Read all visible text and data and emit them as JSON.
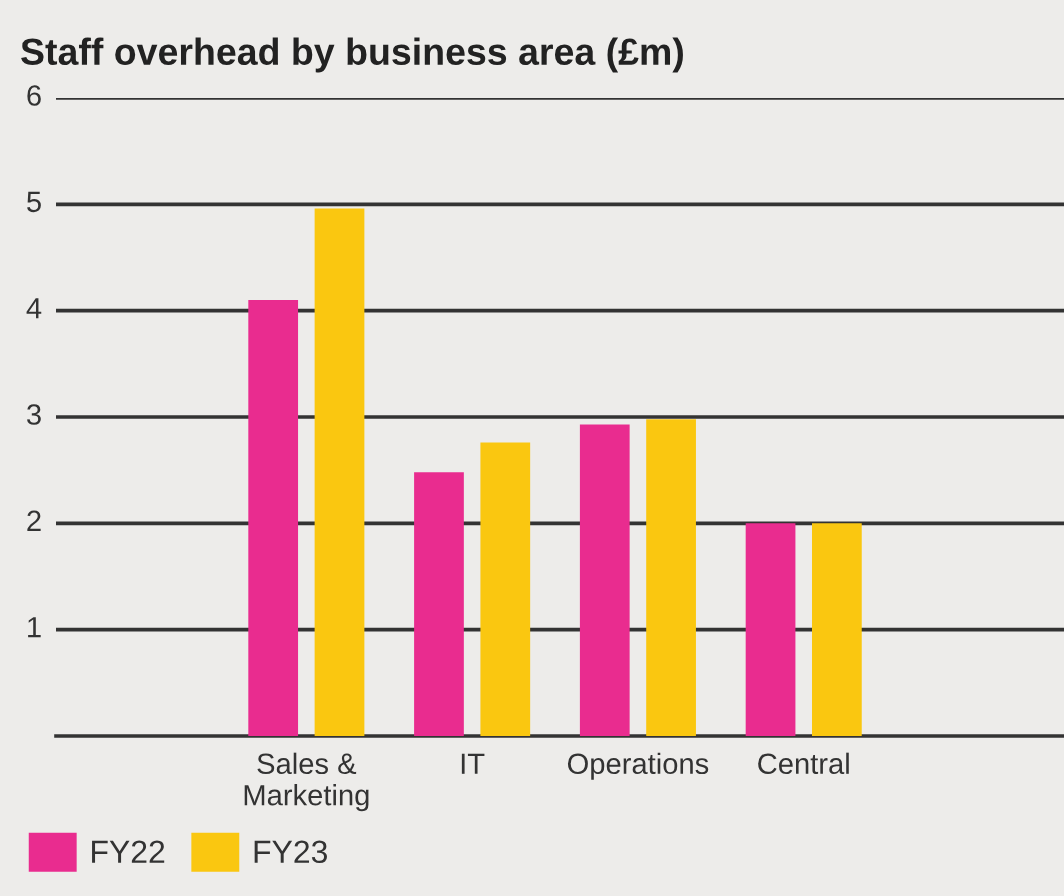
{
  "chart_data": {
    "type": "bar",
    "title": "Staff overhead by business area (£m)",
    "categories": [
      "Sales &\nMarketing",
      "IT",
      "Operations",
      "Central"
    ],
    "series": [
      {
        "name": "FY22",
        "color": "#e92c8f",
        "values": [
          4.1,
          2.48,
          2.93,
          2.0
        ]
      },
      {
        "name": "FY23",
        "color": "#fac710",
        "values": [
          4.96,
          2.76,
          2.98,
          2.0
        ]
      }
    ],
    "ylim": [
      0,
      6
    ],
    "yticks": [
      1,
      2,
      3,
      4,
      5,
      6
    ],
    "grid": "y",
    "legend": "bottom left"
  }
}
